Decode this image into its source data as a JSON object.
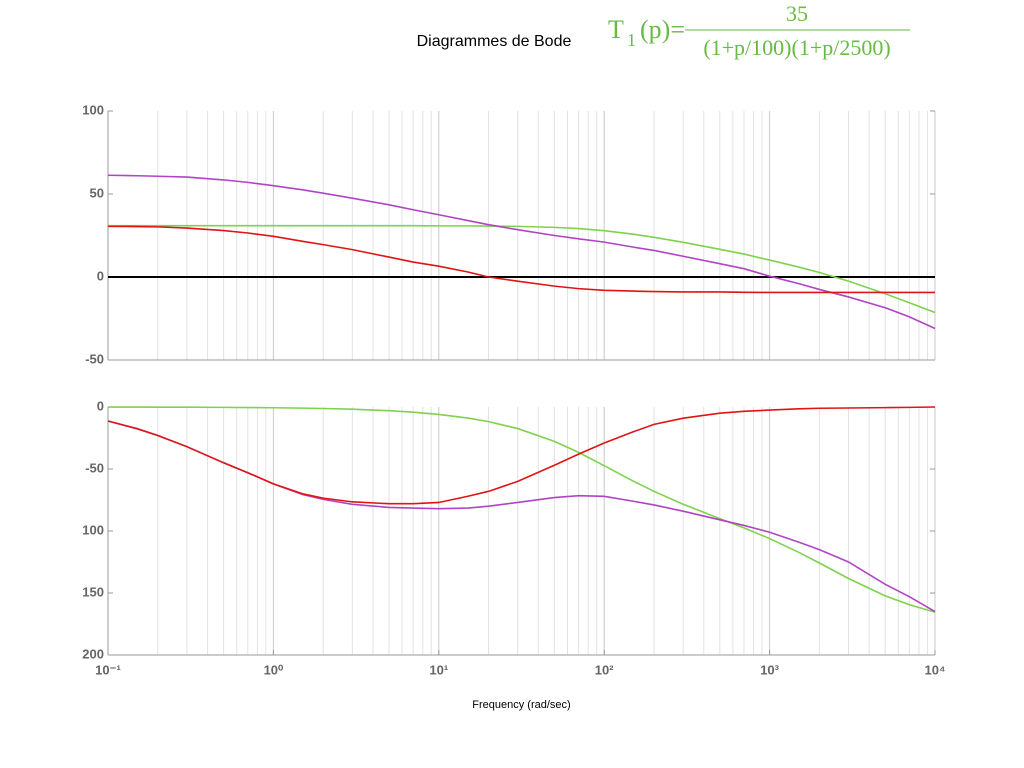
{
  "title": "Diagrammes de Bode",
  "formula": {
    "lhs": "T",
    "subscript": "1",
    "arg": "(p)=",
    "numerator": "35",
    "denominator": "(1+p/100)(1+p/2500)"
  },
  "chart_data": [
    {
      "type": "line",
      "xscale": "log",
      "xlim": [
        0.1,
        10000
      ],
      "ylim": [
        -50,
        100
      ],
      "yticks": [
        -50,
        0,
        50,
        100
      ],
      "grid": true,
      "zero_line": true,
      "x": [
        0.1,
        0.15,
        0.2,
        0.3,
        0.5,
        0.7,
        1,
        1.5,
        2,
        3,
        5,
        7,
        10,
        15,
        20,
        30,
        50,
        70,
        100,
        150,
        200,
        300,
        500,
        700,
        1000,
        1500,
        2000,
        3000,
        5000,
        7000,
        10000
      ],
      "series": [
        {
          "color": "#7ed24c",
          "values": [
            30.9,
            30.9,
            30.9,
            30.9,
            30.9,
            30.9,
            30.9,
            30.9,
            30.9,
            30.9,
            30.9,
            30.9,
            30.8,
            30.8,
            30.7,
            30.5,
            29.9,
            29.2,
            27.9,
            25.8,
            23.9,
            20.9,
            16.7,
            13.8,
            10.2,
            6.0,
            2.7,
            -2.5,
            -10.1,
            -15.5,
            -21.4
          ]
        },
        {
          "color": "#b044c4",
          "values": [
            61.3,
            61,
            60.7,
            60.2,
            58.5,
            57,
            55,
            52.5,
            50.5,
            47.5,
            43.5,
            40.5,
            37.5,
            34,
            31.5,
            28.5,
            25,
            23,
            21,
            18,
            16,
            12.5,
            8,
            5,
            0.5,
            -4,
            -7.5,
            -12,
            -18.5,
            -24,
            -31
          ]
        },
        {
          "color": "#e01414",
          "values": [
            30.5,
            30.4,
            30.2,
            29.5,
            28,
            26.5,
            24.5,
            21.5,
            19.5,
            16.5,
            12,
            9,
            6.5,
            3,
            0,
            -2.5,
            -5.5,
            -7,
            -8,
            -8.5,
            -8.8,
            -9,
            -9,
            -9.2,
            -9.3,
            -9.3,
            -9.3,
            -9.3,
            -9.3,
            -9.3,
            -9.3
          ]
        }
      ]
    },
    {
      "type": "line",
      "xscale": "log",
      "xlim": [
        0.1,
        10000
      ],
      "ylim": [
        -200,
        0
      ],
      "yticks": [
        {
          "value": -200,
          "label": "200"
        },
        {
          "value": -150,
          "label": "150"
        },
        {
          "value": -100,
          "label": "100"
        },
        -50,
        0
      ],
      "xticks": [
        {
          "value": 0.1,
          "label": "10⁻¹"
        },
        {
          "value": 1,
          "label": "10⁰"
        },
        {
          "value": 10,
          "label": "10¹"
        },
        {
          "value": 100,
          "label": "10²"
        },
        {
          "value": 1000,
          "label": "10³"
        },
        {
          "value": 10000,
          "label": "10⁴"
        }
      ],
      "xlabel": "Frequency (rad/sec)",
      "grid": true,
      "x": [
        0.1,
        0.15,
        0.2,
        0.3,
        0.5,
        0.7,
        1,
        1.5,
        2,
        3,
        5,
        7,
        10,
        15,
        20,
        30,
        50,
        70,
        100,
        150,
        200,
        300,
        500,
        700,
        1000,
        1500,
        2000,
        3000,
        5000,
        7000,
        10000
      ],
      "series": [
        {
          "color": "#7ed24c",
          "values": [
            -0.06,
            -0.09,
            -0.12,
            -0.18,
            -0.3,
            -0.42,
            -0.6,
            -0.9,
            -1.2,
            -1.8,
            -3,
            -4.2,
            -6,
            -8.9,
            -11.8,
            -17.4,
            -27.7,
            -36.6,
            -47.3,
            -59.8,
            -68,
            -78.4,
            -90,
            -97.5,
            -106.1,
            -117.2,
            -125.8,
            -138.3,
            -152.3,
            -159.5,
            -165.4
          ]
        },
        {
          "color": "#b044c4",
          "values": [
            -11.3,
            -17.5,
            -23,
            -32,
            -45,
            -53,
            -62,
            -70.5,
            -74.5,
            -78.5,
            -81,
            -81.5,
            -82,
            -81.5,
            -80,
            -77,
            -73,
            -71.5,
            -72,
            -76,
            -79,
            -84,
            -91,
            -95.5,
            -101,
            -109,
            -115,
            -125,
            -143,
            -153,
            -165
          ]
        },
        {
          "color": "#e01414",
          "values": [
            -11.3,
            -17.5,
            -23,
            -32,
            -45,
            -53,
            -62,
            -70,
            -73.5,
            -76.5,
            -78,
            -78,
            -77,
            -72,
            -68,
            -60,
            -47,
            -38,
            -29,
            -20,
            -14,
            -9,
            -5,
            -3.5,
            -2.5,
            -1.5,
            -1,
            -0.8,
            -0.5,
            -0.3,
            0
          ]
        }
      ]
    }
  ]
}
